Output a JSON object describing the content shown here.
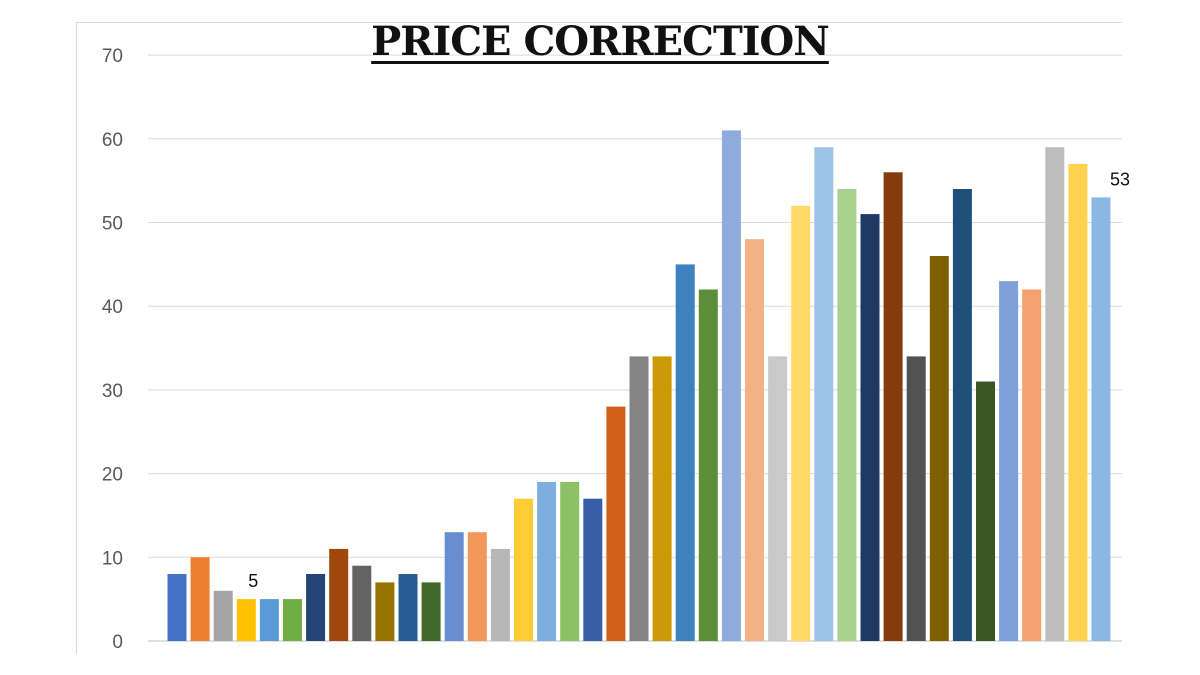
{
  "chart_data": {
    "type": "bar",
    "title": "PRICE CORRECTION",
    "ylim": [
      0,
      70
    ],
    "yticks": [
      "0",
      "10",
      "20",
      "30",
      "40",
      "50",
      "60",
      "70"
    ],
    "grid": true,
    "values": [
      8,
      10,
      6,
      5,
      5,
      5,
      8,
      11,
      9,
      7,
      8,
      7,
      13,
      13,
      11,
      17,
      19,
      19,
      17,
      28,
      34,
      34,
      45,
      42,
      61,
      48,
      34,
      52,
      59,
      54,
      51,
      56,
      34,
      46,
      54,
      31,
      43,
      42,
      59,
      57,
      53
    ],
    "colors": [
      "#4472C4",
      "#ED7D31",
      "#A5A5A5",
      "#FFC000",
      "#5B9BD5",
      "#70AD47",
      "#264478",
      "#9E480E",
      "#636363",
      "#997300",
      "#255E91",
      "#43682B",
      "#698ED0",
      "#F1975A",
      "#B7B7B7",
      "#FFCD33",
      "#7CAFDD",
      "#8CC168",
      "#3A5DA8",
      "#D25F17",
      "#848484",
      "#CC9A06",
      "#3D81C1",
      "#5C8E3A",
      "#8FAADC",
      "#F4B183",
      "#C9C9C9",
      "#FFD966",
      "#9DC3E6",
      "#A9D18E",
      "#203864",
      "#843C0C",
      "#525252",
      "#7F6000",
      "#1F4E79",
      "#385723",
      "#7F9FD8",
      "#F3A26F",
      "#BDBDBD",
      "#FFD34F",
      "#8AB8E3"
    ],
    "data_labels": [
      {
        "index": 3,
        "text": "5"
      },
      {
        "index": 40,
        "text": "53"
      }
    ]
  }
}
